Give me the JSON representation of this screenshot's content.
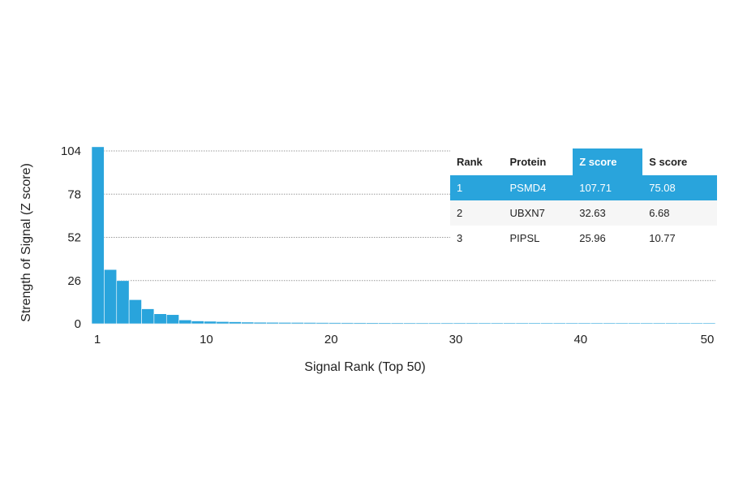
{
  "chart_data": {
    "type": "bar",
    "xlabel": "Signal Rank (Top 50)",
    "ylabel": "Strength of Signal (Z score)",
    "yticks": [
      0,
      26,
      52,
      78,
      104
    ],
    "xticks": [
      1,
      10,
      20,
      30,
      40,
      50
    ],
    "ylim": [
      0,
      104
    ],
    "xlim": [
      1,
      50
    ],
    "grid": true,
    "x": [
      1,
      2,
      3,
      4,
      5,
      6,
      7,
      8,
      9,
      10,
      11,
      12,
      13,
      14,
      15,
      16,
      17,
      18,
      19,
      20,
      21,
      22,
      23,
      24,
      25,
      26,
      27,
      28,
      29,
      30,
      31,
      32,
      33,
      34,
      35,
      36,
      37,
      38,
      39,
      40,
      41,
      42,
      43,
      44,
      45,
      46,
      47,
      48,
      49,
      50
    ],
    "values": [
      107.71,
      32.63,
      25.96,
      14.5,
      9.0,
      6.0,
      5.5,
      2.3,
      1.7,
      1.5,
      1.3,
      1.2,
      1.0,
      0.9,
      0.85,
      0.8,
      0.78,
      0.75,
      0.72,
      0.7,
      0.68,
      0.66,
      0.64,
      0.62,
      0.6,
      0.59,
      0.58,
      0.57,
      0.56,
      0.55,
      0.54,
      0.53,
      0.52,
      0.51,
      0.5,
      0.5,
      0.49,
      0.49,
      0.48,
      0.48,
      0.47,
      0.47,
      0.46,
      0.46,
      0.45,
      0.45,
      0.44,
      0.44,
      0.43,
      0.43
    ],
    "color": "#29a4dc",
    "table": {
      "headers": [
        "Rank",
        "Protein",
        "Z score",
        "S score"
      ],
      "rows": [
        [
          "1",
          "PSMD4",
          "107.71",
          "75.08"
        ],
        [
          "2",
          "UBXN7",
          "32.63",
          "6.68"
        ],
        [
          "3",
          "PIPSL",
          "25.96",
          "10.77"
        ]
      ],
      "highlight_color": "#29a4dc"
    }
  }
}
